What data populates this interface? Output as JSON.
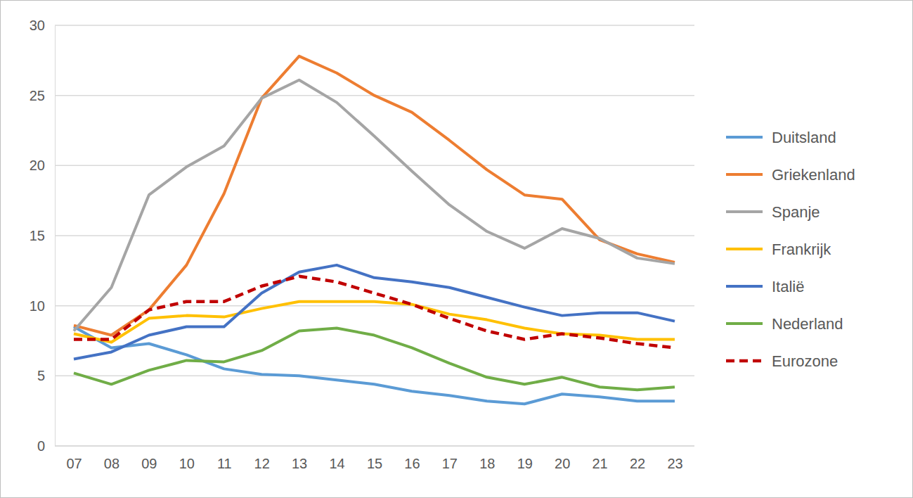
{
  "chart_data": {
    "type": "line",
    "categories": [
      "07",
      "08",
      "09",
      "10",
      "11",
      "12",
      "13",
      "14",
      "15",
      "16",
      "17",
      "18",
      "19",
      "20",
      "21",
      "22",
      "23"
    ],
    "series": [
      {
        "name": "Duitsland",
        "color": "#5b9bd5",
        "line_style": "solid",
        "values": [
          8.5,
          7.0,
          7.3,
          6.5,
          5.5,
          5.1,
          5.0,
          4.7,
          4.4,
          3.9,
          3.6,
          3.2,
          3.0,
          3.7,
          3.5,
          3.2,
          3.2
        ]
      },
      {
        "name": "Griekenland",
        "color": "#ed7d31",
        "line_style": "solid",
        "values": [
          8.6,
          7.9,
          9.7,
          12.9,
          18.0,
          24.8,
          27.8,
          26.6,
          25.0,
          23.8,
          21.8,
          19.7,
          17.9,
          17.6,
          14.7,
          13.7,
          13.1
        ]
      },
      {
        "name": "Spanje",
        "color": "#a5a5a5",
        "line_style": "solid",
        "values": [
          8.2,
          11.3,
          17.9,
          19.9,
          21.4,
          24.8,
          26.1,
          24.5,
          22.1,
          19.6,
          17.2,
          15.3,
          14.1,
          15.5,
          14.8,
          13.4,
          13.0
        ]
      },
      {
        "name": "Frankrijk",
        "color": "#ffc000",
        "line_style": "solid",
        "values": [
          8.0,
          7.4,
          9.1,
          9.3,
          9.2,
          9.8,
          10.3,
          10.3,
          10.3,
          10.1,
          9.4,
          9.0,
          8.4,
          8.0,
          7.9,
          7.6,
          7.6
        ]
      },
      {
        "name": "Italië",
        "color": "#4472c4",
        "line_style": "solid",
        "values": [
          6.2,
          6.7,
          7.9,
          8.5,
          8.5,
          10.9,
          12.4,
          12.9,
          12.0,
          11.7,
          11.3,
          10.6,
          9.9,
          9.3,
          9.5,
          9.5,
          8.9
        ]
      },
      {
        "name": "Nederland",
        "color": "#70ad47",
        "line_style": "solid",
        "values": [
          5.2,
          4.4,
          5.4,
          6.1,
          6.0,
          6.8,
          8.2,
          8.4,
          7.9,
          7.0,
          5.9,
          4.9,
          4.4,
          4.9,
          4.2,
          4.0,
          4.2
        ]
      },
      {
        "name": "Eurozone",
        "color": "#c00000",
        "line_style": "dashed",
        "values": [
          7.6,
          7.6,
          9.7,
          10.3,
          10.3,
          11.4,
          12.1,
          11.7,
          10.9,
          10.1,
          9.1,
          8.2,
          7.6,
          8.0,
          7.7,
          7.3,
          7.0
        ]
      }
    ],
    "ylim": [
      0,
      30
    ],
    "yticks": [
      0,
      5,
      10,
      15,
      20,
      25,
      30
    ],
    "grid": true,
    "legend": "right"
  }
}
